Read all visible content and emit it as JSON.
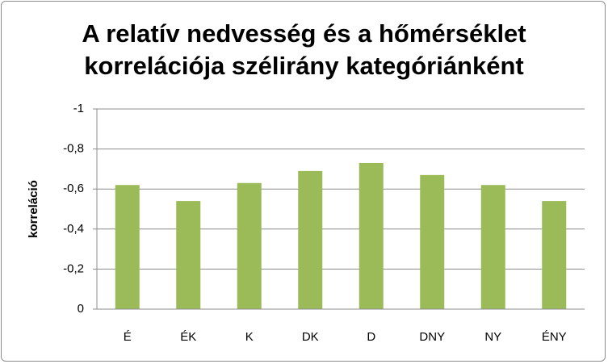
{
  "chart_data": {
    "type": "bar",
    "title": "A relatív nedvesség és a hőmérséklet korrelációja szélirány kategóriánként",
    "y_label": "korreláció",
    "categories": [
      "É",
      "ÉK",
      "K",
      "DK",
      "D",
      "DNY",
      "NY",
      "ÉNY"
    ],
    "values": [
      -0.62,
      -0.54,
      -0.63,
      -0.69,
      -0.73,
      -0.67,
      -0.62,
      -0.54
    ],
    "color": "#9bbb59",
    "ylim": [
      0,
      -1
    ],
    "yticks": [
      0,
      {
        "value": -0.2,
        "label": "-0,2"
      },
      {
        "value": -0.4,
        "label": "-0,4"
      },
      {
        "value": -0.6,
        "label": "-0,6"
      },
      {
        "value": -0.8,
        "label": "-0,8"
      },
      -1
    ],
    "grid": true
  }
}
